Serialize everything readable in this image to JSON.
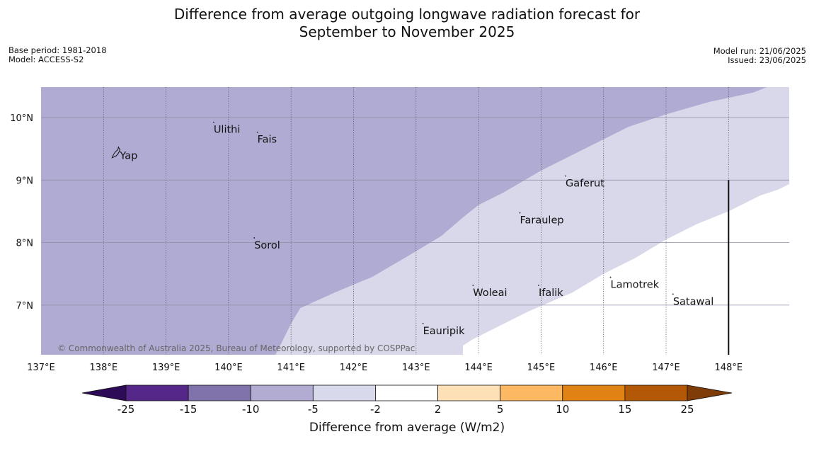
{
  "title": {
    "line1": "Difference from average outgoing longwave radiation forecast for",
    "line2": "September to November 2025"
  },
  "meta_left": {
    "base_period": "Base period: 1981-2018",
    "model": "Model: ACCESS-S2"
  },
  "meta_right": {
    "model_run": "Model run: 21/06/2025",
    "issued": "Issued: 23/06/2025"
  },
  "map": {
    "lon_range": [
      137,
      149
    ],
    "lat_range": [
      6.2,
      10.5
    ],
    "lon_ticks": [
      {
        "value": 137,
        "label": "137°E"
      },
      {
        "value": 138,
        "label": "138°E"
      },
      {
        "value": 139,
        "label": "139°E"
      },
      {
        "value": 140,
        "label": "140°E"
      },
      {
        "value": 141,
        "label": "141°E"
      },
      {
        "value": 142,
        "label": "142°E"
      },
      {
        "value": 143,
        "label": "143°E"
      },
      {
        "value": 144,
        "label": "144°E"
      },
      {
        "value": 145,
        "label": "145°E"
      },
      {
        "value": 146,
        "label": "146°E"
      },
      {
        "value": 147,
        "label": "147°E"
      },
      {
        "value": 148,
        "label": "148°E"
      }
    ],
    "lat_ticks": [
      {
        "value": 10,
        "label": "10°N"
      },
      {
        "value": 9,
        "label": "9°N"
      },
      {
        "value": 8,
        "label": "8°N"
      },
      {
        "value": 7,
        "label": "7°N"
      }
    ],
    "boundary_line_lon": 148,
    "boundary_line_lat_range": [
      6.2,
      9.0
    ],
    "regions": [
      {
        "category": "-10 to -5",
        "color": "#b0abd2",
        "polygon": [
          [
            137,
            10.5
          ],
          [
            148.65,
            10.5
          ],
          [
            148.4,
            10.4
          ],
          [
            147.7,
            10.25
          ],
          [
            147.0,
            10.05
          ],
          [
            146.4,
            9.85
          ],
          [
            145.8,
            9.55
          ],
          [
            145.0,
            9.15
          ],
          [
            144.4,
            8.8
          ],
          [
            144.0,
            8.6
          ],
          [
            143.75,
            8.4
          ],
          [
            143.4,
            8.1
          ],
          [
            142.9,
            7.8
          ],
          [
            142.3,
            7.45
          ],
          [
            141.7,
            7.2
          ],
          [
            141.15,
            6.95
          ],
          [
            141.0,
            6.7
          ],
          [
            140.85,
            6.4
          ],
          [
            140.75,
            6.2
          ],
          [
            137,
            6.2
          ]
        ]
      },
      {
        "category": "-5 to -2",
        "color": "#d8d8ea",
        "polygon": [
          [
            148.65,
            10.5
          ],
          [
            149,
            10.5
          ],
          [
            149,
            8.95
          ],
          [
            148.8,
            8.85
          ],
          [
            148.5,
            8.75
          ],
          [
            148.3,
            8.65
          ],
          [
            148.0,
            8.5
          ],
          [
            147.5,
            8.3
          ],
          [
            147.0,
            8.05
          ],
          [
            146.5,
            7.75
          ],
          [
            146.0,
            7.5
          ],
          [
            145.5,
            7.2
          ],
          [
            144.8,
            6.9
          ],
          [
            144.3,
            6.65
          ],
          [
            143.9,
            6.45
          ],
          [
            143.75,
            6.35
          ],
          [
            143.75,
            6.2
          ],
          [
            140.75,
            6.2
          ],
          [
            140.85,
            6.4
          ],
          [
            141.0,
            6.7
          ],
          [
            141.15,
            6.95
          ],
          [
            141.7,
            7.2
          ],
          [
            142.3,
            7.45
          ],
          [
            142.9,
            7.8
          ],
          [
            143.4,
            8.1
          ],
          [
            143.75,
            8.4
          ],
          [
            144.0,
            8.6
          ],
          [
            144.4,
            8.8
          ],
          [
            145.0,
            9.15
          ],
          [
            145.8,
            9.55
          ],
          [
            146.4,
            9.85
          ],
          [
            147.0,
            10.05
          ],
          [
            147.7,
            10.25
          ],
          [
            148.4,
            10.4
          ]
        ]
      }
    ],
    "places": [
      {
        "name": "Ulithi",
        "lon": 139.75,
        "lat": 9.88
      },
      {
        "name": "Fais",
        "lon": 140.45,
        "lat": 9.72
      },
      {
        "name": "Yap",
        "lon": 138.25,
        "lat": 9.46
      },
      {
        "name": "Gaferut",
        "lon": 145.38,
        "lat": 9.02
      },
      {
        "name": "Faraulep",
        "lon": 144.65,
        "lat": 8.43
      },
      {
        "name": "Sorol",
        "lon": 140.4,
        "lat": 8.03
      },
      {
        "name": "Woleai",
        "lon": 143.9,
        "lat": 7.27
      },
      {
        "name": "Ifalik",
        "lon": 144.95,
        "lat": 7.27
      },
      {
        "name": "Lamotrek",
        "lon": 146.1,
        "lat": 7.4
      },
      {
        "name": "Satawal",
        "lon": 147.1,
        "lat": 7.13
      },
      {
        "name": "Eauripik",
        "lon": 143.1,
        "lat": 6.66
      }
    ],
    "copyright": "© Commonwealth of Australia 2025, Bureau of Meteorology, supported by COSPPac"
  },
  "colorbar": {
    "bins": [
      {
        "label": "-25",
        "color": "#2d0b56"
      },
      {
        "label": "-15",
        "color": "#542788"
      },
      {
        "label": "-10",
        "color": "#8073ac"
      },
      {
        "label": "-5",
        "color": "#b2abd2"
      },
      {
        "label": "-2",
        "color": "#d8daeb"
      },
      {
        "label": "2",
        "color": "#ffffff"
      },
      {
        "label": "5",
        "color": "#fee0b6"
      },
      {
        "label": "10",
        "color": "#fdb863"
      },
      {
        "label": "15",
        "color": "#e08214"
      },
      {
        "label": "25",
        "color": "#b35806"
      },
      {
        "label": "",
        "color": "#7f3b08"
      }
    ],
    "title": "Difference from average (W/m2)"
  }
}
